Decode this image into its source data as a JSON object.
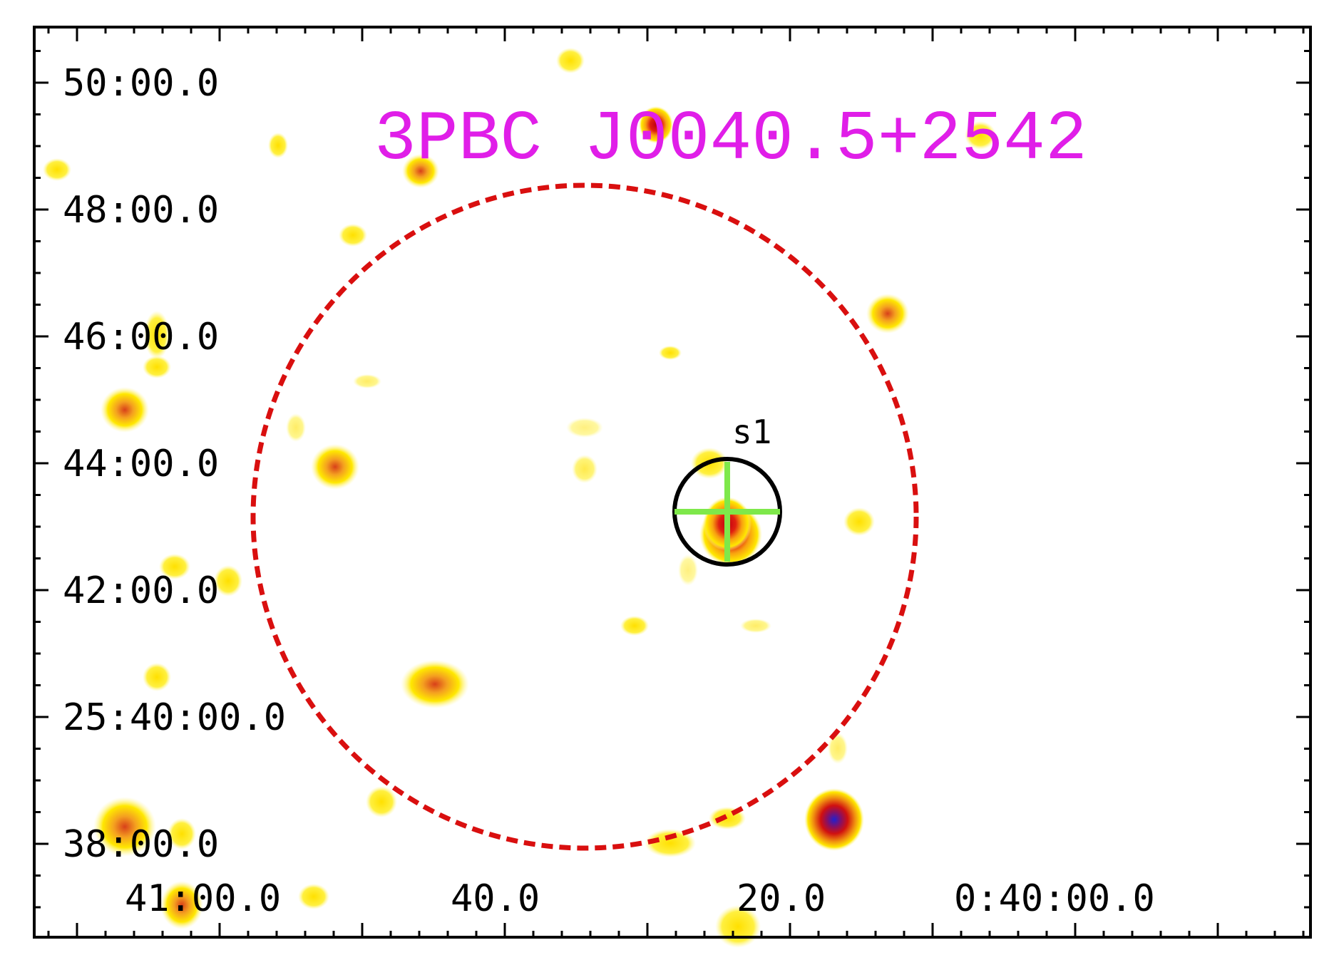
{
  "title": "3PBC J0040.5+2542",
  "source_label": "s1",
  "colors": {
    "title": "#e01ee8",
    "circle": "#d90f0f",
    "marker": "#7ee84a",
    "frame": "#000000"
  },
  "axes": {
    "ra_labels": [
      "41:00.0",
      "40.0",
      "20.0",
      "0:40:00.0"
    ],
    "dec_labels": [
      "50:00.0",
      "48:00.0",
      "46:00.0",
      "44:00.0",
      "42:00.0",
      "25:40:00.0",
      "38:00.0"
    ]
  }
}
